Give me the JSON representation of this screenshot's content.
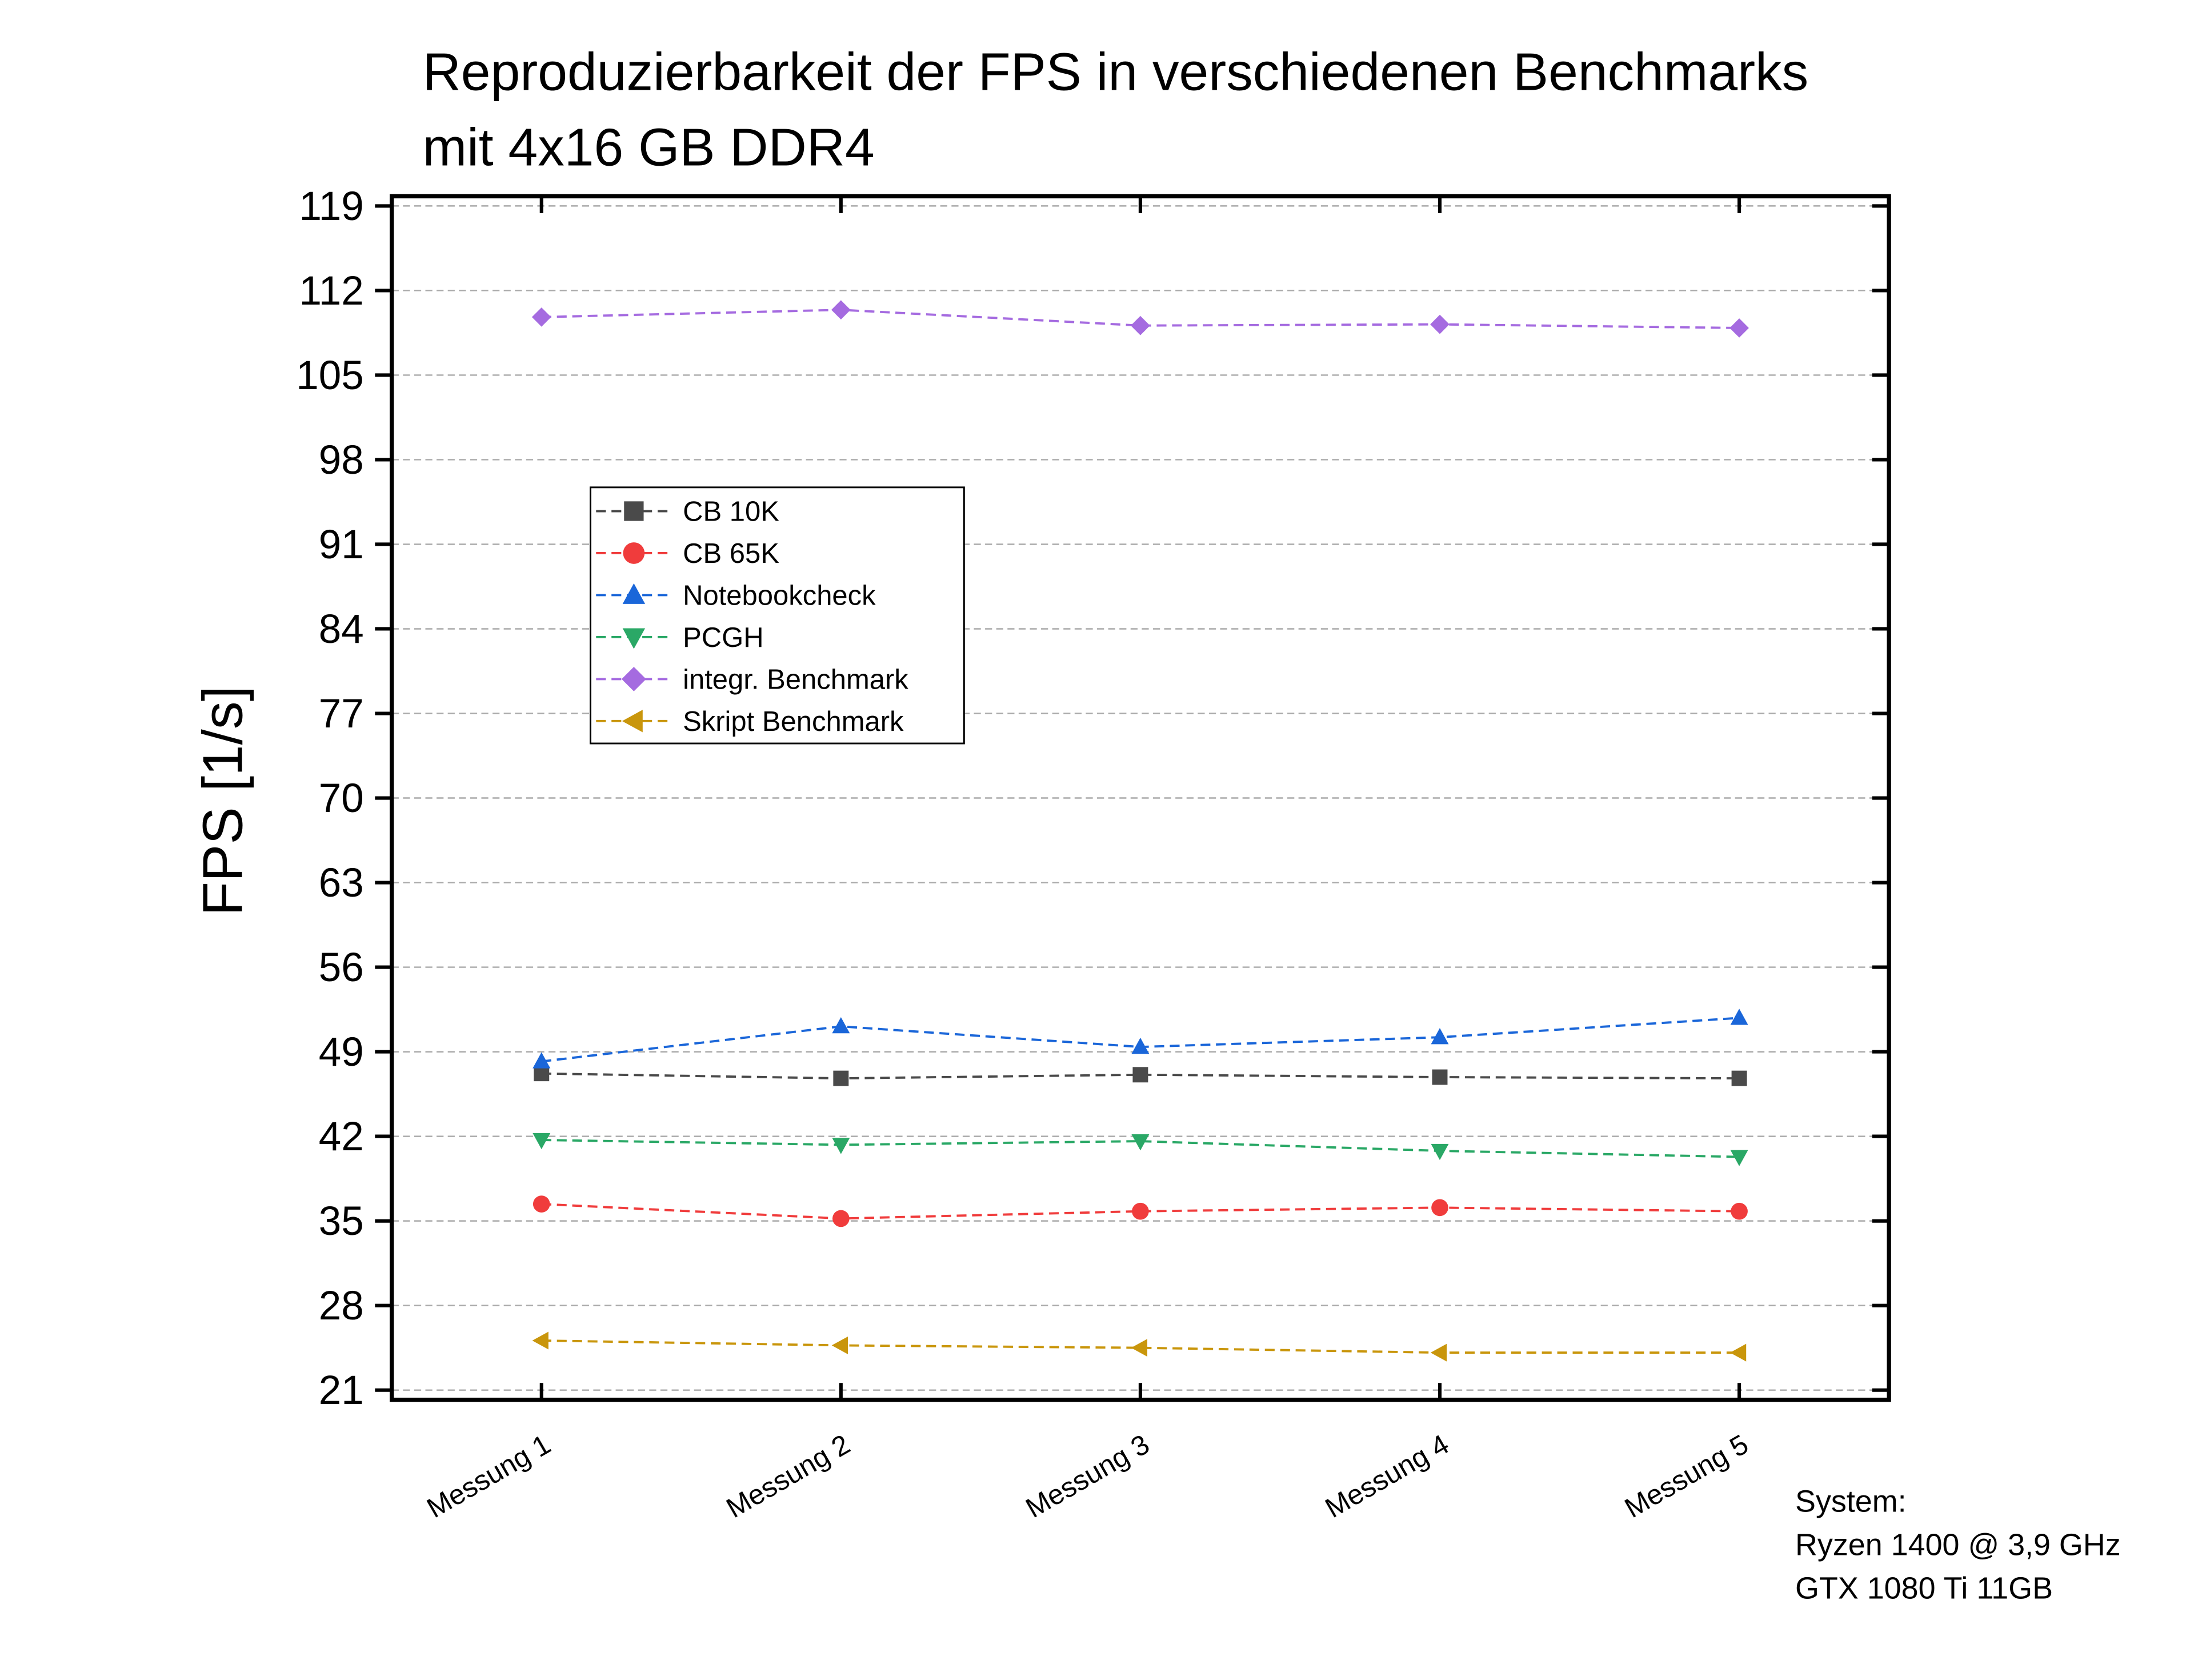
{
  "chart_data": {
    "type": "line",
    "title": [
      "Reproduzierbarkeit der FPS in verschiedenen Benchmarks",
      "mit 4x16 GB DDR4"
    ],
    "y_label": "FPS [1/s]",
    "categories": [
      "Messung 1",
      "Messung 2",
      "Messung 3",
      "Messung 4",
      "Messung 5"
    ],
    "series": [
      {
        "name": "CB 10K",
        "color": "#4a4a4a",
        "marker": "square",
        "values": [
          47.2,
          46.8,
          47.1,
          46.9,
          46.8
        ]
      },
      {
        "name": "CB 65K",
        "color": "#f03c3c",
        "marker": "circle",
        "values": [
          36.4,
          35.2,
          35.8,
          36.1,
          35.8
        ]
      },
      {
        "name": "Notebookcheck",
        "color": "#1a66d9",
        "marker": "triangle-up",
        "values": [
          48.2,
          51.1,
          49.4,
          50.2,
          51.8
        ]
      },
      {
        "name": "PCGH",
        "color": "#2aa866",
        "marker": "triangle-down",
        "values": [
          41.7,
          41.3,
          41.6,
          40.8,
          40.3
        ]
      },
      {
        "name": "integr. Benchmark",
        "color": "#a56be0",
        "marker": "diamond",
        "values": [
          109.8,
          110.4,
          109.1,
          109.2,
          108.9
        ]
      },
      {
        "name": "Skript Benchmark",
        "color": "#c9960c",
        "marker": "triangle-left",
        "values": [
          25.1,
          24.7,
          24.5,
          24.1,
          24.1
        ]
      }
    ],
    "ylim": [
      20.2,
      119.8
    ],
    "yticks": [
      21,
      28,
      35,
      42,
      49,
      56,
      63,
      70,
      77,
      84,
      91,
      98,
      105,
      112,
      119
    ],
    "grid": true,
    "legend": "upper left",
    "annotation": [
      "System:",
      "Ryzen 1400 @ 3,9 GHz",
      "GTX 1080 Ti 11GB"
    ]
  }
}
